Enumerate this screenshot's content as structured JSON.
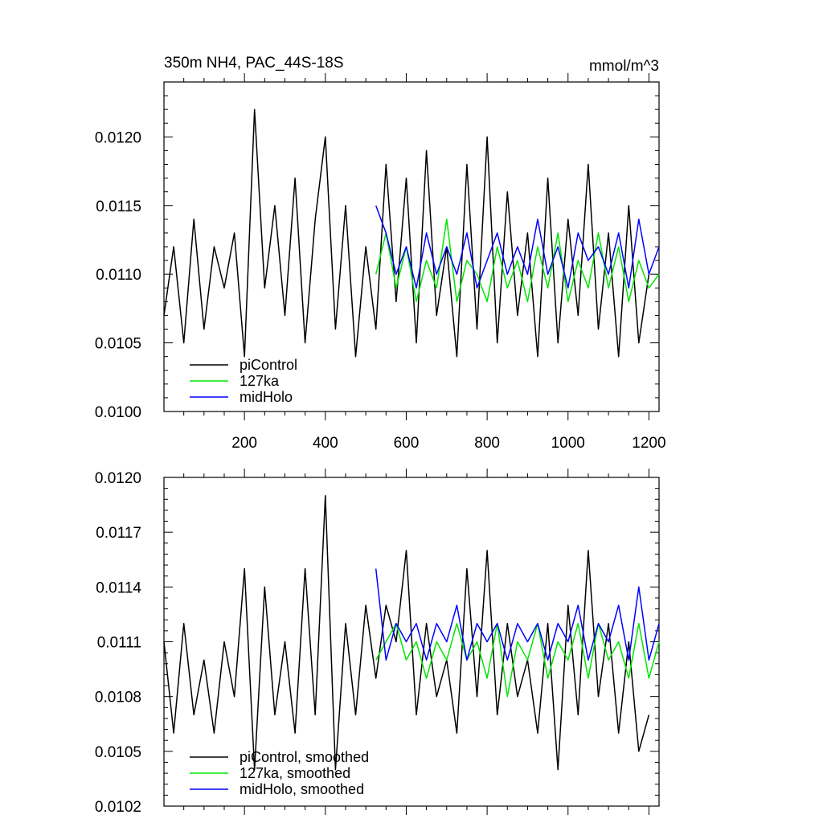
{
  "chart_data": [
    {
      "type": "line",
      "title": "350m NH4, PAC_44S-18S",
      "units": "mmol/m^3",
      "xlabel": "",
      "ylabel": "",
      "xlim": [
        1,
        1225
      ],
      "ylim": [
        0.01,
        0.0124
      ],
      "xticks": [
        200,
        400,
        600,
        800,
        1000,
        1200
      ],
      "xtick_labels": [
        "200",
        "400",
        "600",
        "800",
        "1000",
        "1200"
      ],
      "yticks": [
        0.01,
        0.0105,
        0.011,
        0.0115,
        0.012
      ],
      "ytick_labels": [
        "0.0100",
        "0.0105",
        "0.0110",
        "0.0115",
        "0.0120"
      ],
      "legend_position": "bottom-left",
      "grid": false,
      "series": [
        {
          "name": "piControl",
          "color": "#000000",
          "x": [
            1,
            25,
            50,
            75,
            100,
            125,
            150,
            175,
            200,
            225,
            250,
            275,
            300,
            325,
            350,
            375,
            400,
            425,
            450,
            475,
            500,
            525,
            550,
            575,
            600,
            625,
            650,
            675,
            700,
            725,
            750,
            775,
            800,
            825,
            850,
            875,
            900,
            925,
            950,
            975,
            1000,
            1025,
            1050,
            1075,
            1100,
            1125,
            1150,
            1175,
            1200
          ],
          "values": [
            0.0107,
            0.0112,
            0.0105,
            0.0114,
            0.0106,
            0.0112,
            0.0109,
            0.0113,
            0.0104,
            0.0122,
            0.0109,
            0.0115,
            0.0107,
            0.0117,
            0.0105,
            0.0114,
            0.012,
            0.0106,
            0.0115,
            0.0104,
            0.0112,
            0.0106,
            0.0118,
            0.0108,
            0.0117,
            0.0105,
            0.0119,
            0.0107,
            0.0112,
            0.0104,
            0.0118,
            0.0106,
            0.012,
            0.0105,
            0.0116,
            0.0107,
            0.0113,
            0.0104,
            0.0117,
            0.0105,
            0.0114,
            0.0107,
            0.0118,
            0.0106,
            0.0113,
            0.0104,
            0.0115,
            0.0105,
            0.011
          ]
        },
        {
          "name": "127ka",
          "color": "#00e600",
          "x": [
            525,
            550,
            575,
            600,
            625,
            650,
            675,
            700,
            725,
            750,
            775,
            800,
            825,
            850,
            875,
            900,
            925,
            950,
            975,
            1000,
            1025,
            1050,
            1075,
            1100,
            1125,
            1150,
            1175,
            1200,
            1225
          ],
          "values": [
            0.011,
            0.0113,
            0.0109,
            0.0112,
            0.0108,
            0.0111,
            0.0109,
            0.0114,
            0.0108,
            0.0111,
            0.011,
            0.0108,
            0.0112,
            0.0109,
            0.0111,
            0.0108,
            0.0112,
            0.0109,
            0.0113,
            0.0108,
            0.0111,
            0.0109,
            0.0113,
            0.0109,
            0.0112,
            0.0108,
            0.0111,
            0.0109,
            0.011
          ]
        },
        {
          "name": "midHolo",
          "color": "#0000ff",
          "x": [
            525,
            550,
            575,
            600,
            625,
            650,
            675,
            700,
            725,
            750,
            775,
            800,
            825,
            850,
            875,
            900,
            925,
            950,
            975,
            1000,
            1025,
            1050,
            1075,
            1100,
            1125,
            1150,
            1175,
            1200,
            1225
          ],
          "values": [
            0.0115,
            0.0113,
            0.011,
            0.0112,
            0.0109,
            0.0113,
            0.011,
            0.0112,
            0.011,
            0.0113,
            0.0109,
            0.0111,
            0.0113,
            0.011,
            0.0112,
            0.011,
            0.0114,
            0.011,
            0.0112,
            0.0109,
            0.0113,
            0.0111,
            0.0112,
            0.011,
            0.0113,
            0.0109,
            0.0114,
            0.011,
            0.0112
          ]
        }
      ]
    },
    {
      "type": "line",
      "title": "",
      "xlabel": "",
      "ylabel": "",
      "xlim": [
        1,
        1225
      ],
      "ylim": [
        0.0102,
        0.012
      ],
      "xticks": [
        200,
        400,
        600,
        800,
        1000,
        1200
      ],
      "xtick_labels": [],
      "yticks": [
        0.0102,
        0.0105,
        0.0108,
        0.0111,
        0.0114,
        0.0117,
        0.012
      ],
      "ytick_labels": [
        "0.0102",
        "0.0105",
        "0.0108",
        "0.0111",
        "0.0114",
        "0.0117",
        "0.0120"
      ],
      "legend_position": "bottom-left",
      "grid": false,
      "series": [
        {
          "name": "piControl, smoothed",
          "color": "#000000",
          "x": [
            1,
            25,
            50,
            75,
            100,
            125,
            150,
            175,
            200,
            225,
            250,
            275,
            300,
            325,
            350,
            375,
            400,
            425,
            450,
            475,
            500,
            525,
            550,
            575,
            600,
            625,
            650,
            675,
            700,
            725,
            750,
            775,
            800,
            825,
            850,
            875,
            900,
            925,
            950,
            975,
            1000,
            1025,
            1050,
            1075,
            1100,
            1125,
            1150,
            1175,
            1200
          ],
          "values": [
            0.0111,
            0.0106,
            0.0112,
            0.0107,
            0.011,
            0.0106,
            0.0111,
            0.0108,
            0.0115,
            0.0104,
            0.0114,
            0.0107,
            0.0111,
            0.0106,
            0.0115,
            0.0107,
            0.0119,
            0.0104,
            0.0112,
            0.0107,
            0.0113,
            0.0109,
            0.0113,
            0.0111,
            0.0116,
            0.0107,
            0.0112,
            0.0108,
            0.011,
            0.0106,
            0.0115,
            0.0108,
            0.0116,
            0.0107,
            0.0112,
            0.0108,
            0.011,
            0.0106,
            0.0112,
            0.0104,
            0.0113,
            0.0107,
            0.0116,
            0.0108,
            0.0112,
            0.0106,
            0.0111,
            0.0105,
            0.0107
          ]
        },
        {
          "name": "127ka, smoothed",
          "color": "#00e600",
          "x": [
            525,
            550,
            575,
            600,
            625,
            650,
            675,
            700,
            725,
            750,
            775,
            800,
            825,
            850,
            875,
            900,
            925,
            950,
            975,
            1000,
            1025,
            1050,
            1075,
            1100,
            1125,
            1150,
            1175,
            1200,
            1225
          ],
          "values": [
            0.011,
            0.0111,
            0.0112,
            0.011,
            0.0111,
            0.0109,
            0.0111,
            0.011,
            0.0112,
            0.011,
            0.0111,
            0.0109,
            0.0112,
            0.0108,
            0.0111,
            0.011,
            0.0112,
            0.0109,
            0.0111,
            0.011,
            0.0112,
            0.0109,
            0.0112,
            0.011,
            0.0111,
            0.0109,
            0.0112,
            0.0109,
            0.0111
          ]
        },
        {
          "name": "midHolo, smoothed",
          "color": "#0000ff",
          "x": [
            525,
            550,
            575,
            600,
            625,
            650,
            675,
            700,
            725,
            750,
            775,
            800,
            825,
            850,
            875,
            900,
            925,
            950,
            975,
            1000,
            1025,
            1050,
            1075,
            1100,
            1125,
            1150,
            1175,
            1200,
            1225
          ],
          "values": [
            0.0115,
            0.011,
            0.0112,
            0.0111,
            0.0112,
            0.011,
            0.0112,
            0.0111,
            0.0113,
            0.011,
            0.0112,
            0.0111,
            0.0112,
            0.011,
            0.0112,
            0.0111,
            0.0112,
            0.011,
            0.0112,
            0.0111,
            0.0113,
            0.011,
            0.0112,
            0.0111,
            0.0113,
            0.011,
            0.0114,
            0.011,
            0.0112
          ]
        }
      ]
    }
  ]
}
